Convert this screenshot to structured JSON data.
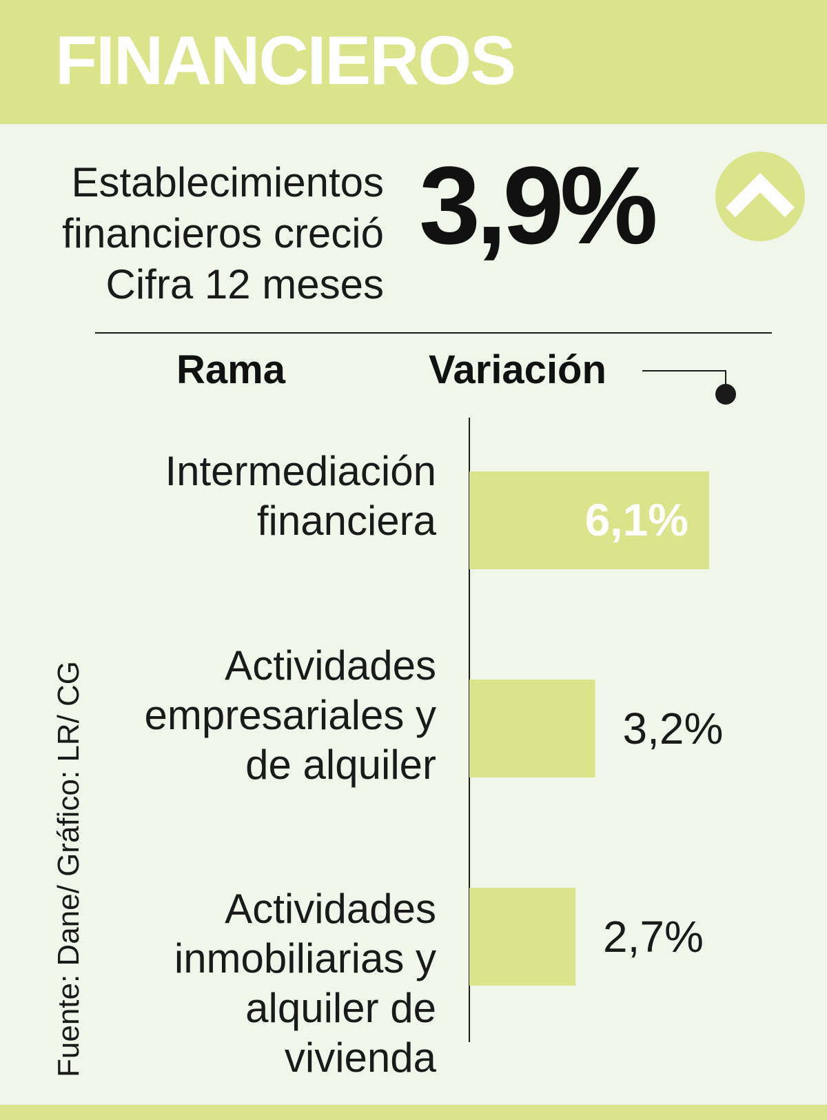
{
  "header": {
    "title": "FINANCIEROS"
  },
  "headline": {
    "lines": [
      "Establecimientos",
      "financieros creció",
      "Cifra 12 meses"
    ],
    "value": "3,9%",
    "trend_icon": "chevron-up-icon"
  },
  "columns": {
    "rama": "Rama",
    "variacion": "Variación"
  },
  "source": "Fuente: Dane/ Gráfico: LR/ CG",
  "colors": {
    "accent": "#dbe38b",
    "background": "#f1f6ea",
    "text": "#1a1a1a"
  },
  "chart_data": {
    "type": "bar",
    "orientation": "horizontal",
    "categories": [
      [
        "Intermediación",
        "financiera"
      ],
      [
        "Actividades",
        "empresariales y",
        "de alquiler"
      ],
      [
        "Actividades",
        "inmobiliarias y",
        "alquiler de",
        "vivienda"
      ]
    ],
    "values": [
      6.1,
      3.2,
      2.7
    ],
    "value_labels": [
      "6,1%",
      "3,2%",
      "2,7%"
    ],
    "xlim": [
      0,
      7
    ],
    "grid": false,
    "legend": "none"
  }
}
